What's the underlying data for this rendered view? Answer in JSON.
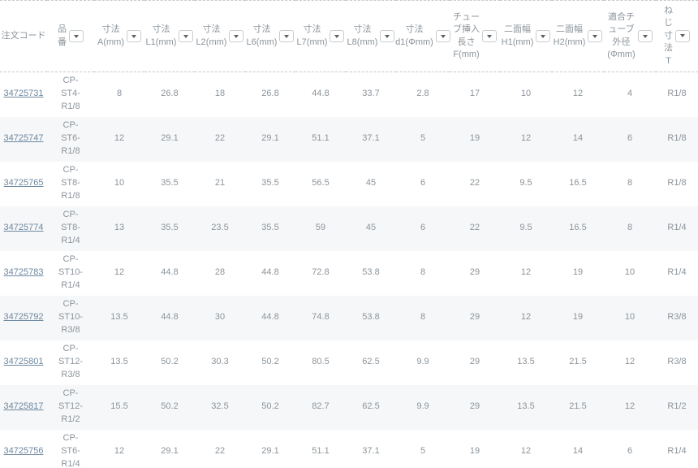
{
  "table": {
    "columns": [
      {
        "label": "注文コード",
        "filter": false
      },
      {
        "label": "品\n番",
        "filter": true
      },
      {
        "label": "寸法\nA(mm)",
        "filter": true
      },
      {
        "label": "寸法\nL1(mm)",
        "filter": true
      },
      {
        "label": "寸法\nL2(mm)",
        "filter": true
      },
      {
        "label": "寸法\nL6(mm)",
        "filter": true
      },
      {
        "label": "寸法\nL7(mm)",
        "filter": true
      },
      {
        "label": "寸法\nL8(mm)",
        "filter": true
      },
      {
        "label": "寸法\nd1(Φmm)",
        "filter": true
      },
      {
        "label": "チュー\nブ挿入\n長さ\nF(mm)",
        "filter": true
      },
      {
        "label": "二面幅\nH1(mm)",
        "filter": true
      },
      {
        "label": "二面幅\nH2(mm)",
        "filter": true
      },
      {
        "label": "適合チ\nューブ\n外径\n(Φmm)",
        "filter": true
      },
      {
        "label": "ね\nじ\n寸\n法\nT",
        "filter": true
      }
    ],
    "rows": [
      {
        "order_code": "34725731",
        "part_no": "CP-ST4-R1/8",
        "values": [
          "8",
          "26.8",
          "18",
          "26.8",
          "44.8",
          "33.7",
          "2.8",
          "17",
          "10",
          "12",
          "4",
          "R1/8"
        ]
      },
      {
        "order_code": "34725747",
        "part_no": "CP-ST6-R1/8",
        "values": [
          "12",
          "29.1",
          "22",
          "29.1",
          "51.1",
          "37.1",
          "5",
          "19",
          "12",
          "14",
          "6",
          "R1/8"
        ]
      },
      {
        "order_code": "34725765",
        "part_no": "CP-ST8-R1/8",
        "values": [
          "10",
          "35.5",
          "21",
          "35.5",
          "56.5",
          "45",
          "6",
          "22",
          "9.5",
          "16.5",
          "8",
          "R1/8"
        ]
      },
      {
        "order_code": "34725774",
        "part_no": "CP-ST8-R1/4",
        "values": [
          "13",
          "35.5",
          "23.5",
          "35.5",
          "59",
          "45",
          "6",
          "22",
          "9.5",
          "16.5",
          "8",
          "R1/4"
        ]
      },
      {
        "order_code": "34725783",
        "part_no": "CP-ST10-R1/4",
        "values": [
          "12",
          "44.8",
          "28",
          "44.8",
          "72.8",
          "53.8",
          "8",
          "29",
          "12",
          "19",
          "10",
          "R1/4"
        ]
      },
      {
        "order_code": "34725792",
        "part_no": "CP-ST10-R3/8",
        "values": [
          "13.5",
          "44.8",
          "30",
          "44.8",
          "74.8",
          "53.8",
          "8",
          "29",
          "12",
          "19",
          "10",
          "R3/8"
        ]
      },
      {
        "order_code": "34725801",
        "part_no": "CP-ST12-R3/8",
        "values": [
          "13.5",
          "50.2",
          "30.3",
          "50.2",
          "80.5",
          "62.5",
          "9.9",
          "29",
          "13.5",
          "21.5",
          "12",
          "R3/8"
        ]
      },
      {
        "order_code": "34725817",
        "part_no": "CP-ST12-R1/2",
        "values": [
          "15.5",
          "50.2",
          "32.5",
          "50.2",
          "82.7",
          "62.5",
          "9.9",
          "29",
          "13.5",
          "21.5",
          "12",
          "R1/2"
        ]
      },
      {
        "order_code": "34725756",
        "part_no": "CP-ST6-R1/4",
        "values": [
          "12",
          "29.1",
          "22",
          "29.1",
          "51.1",
          "37.1",
          "5",
          "19",
          "12",
          "14",
          "6",
          "R1/4"
        ]
      }
    ]
  },
  "colors": {
    "link": "#6e88a0",
    "text": "#8c949b",
    "stripe": "#f6f7f8",
    "dashed_border": "#c6c9cc"
  },
  "icons": {
    "filter_dropdown": "chevron-down"
  }
}
